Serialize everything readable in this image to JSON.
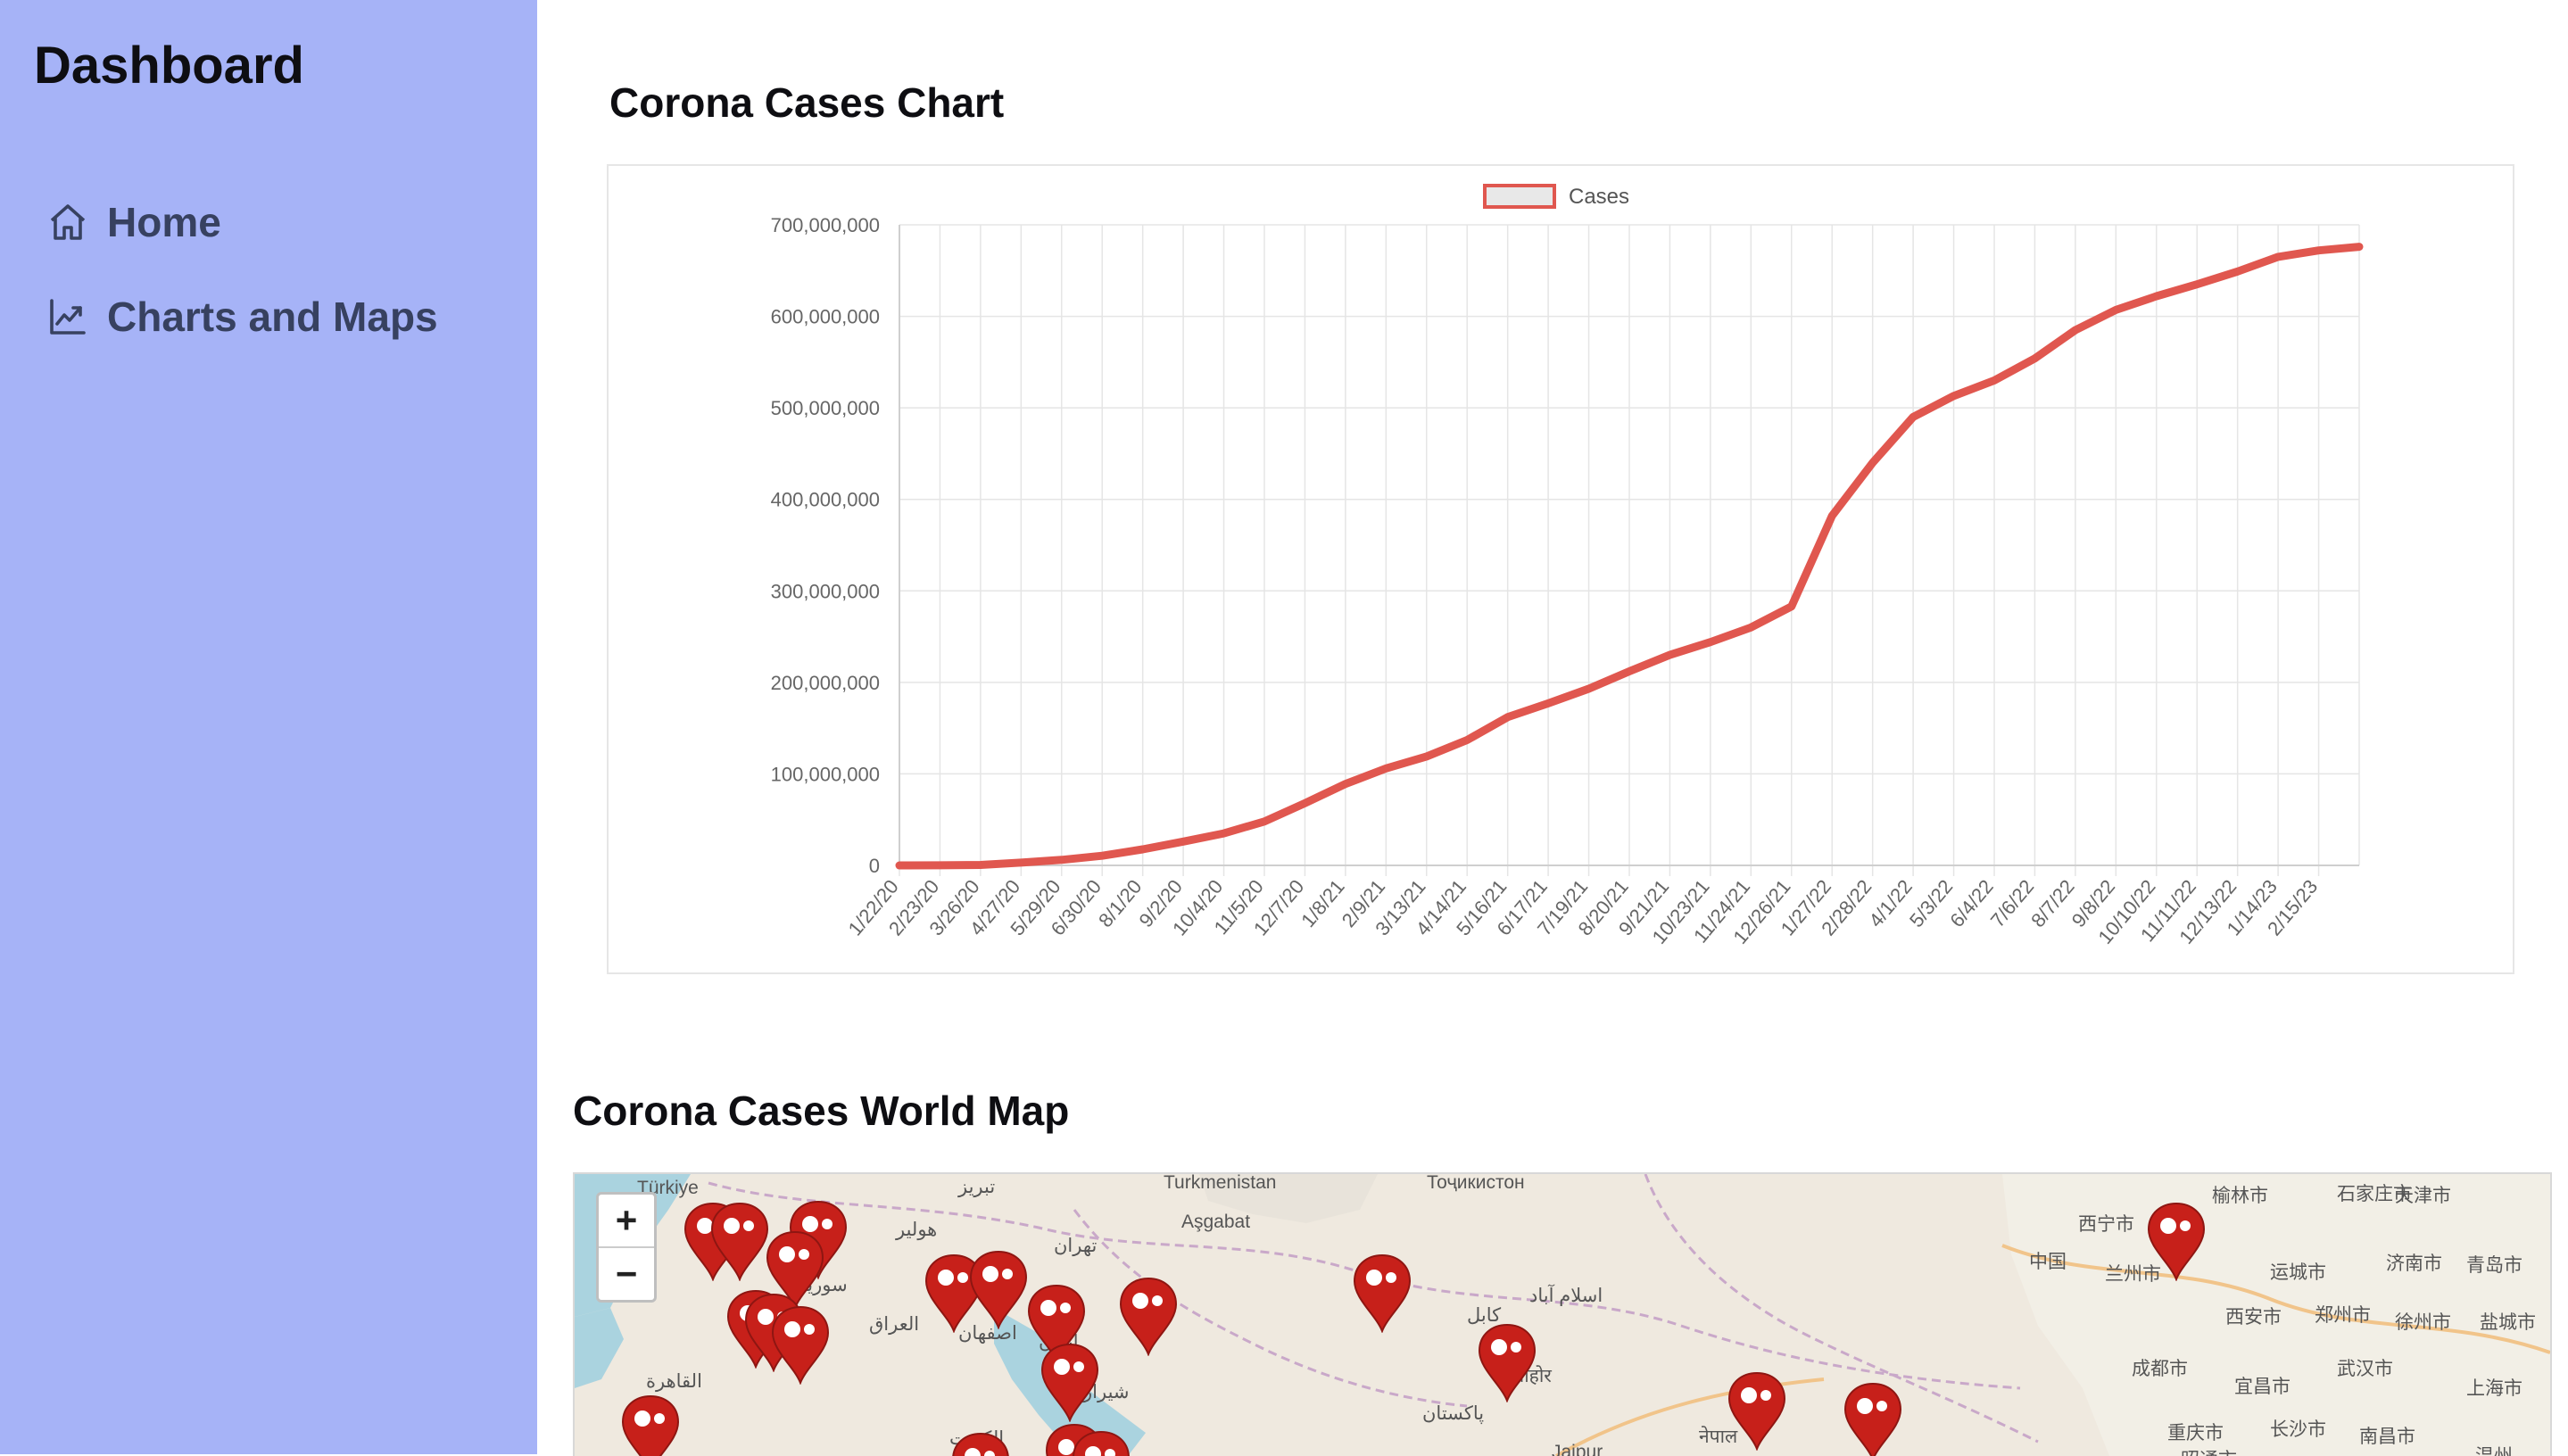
{
  "sidebar": {
    "brand": "Dashboard",
    "items": [
      {
        "label": "Home",
        "icon": "home-icon"
      },
      {
        "label": "Charts and Maps",
        "icon": "chart-line-icon"
      }
    ]
  },
  "main": {
    "chart_title": "Corona Cases Chart",
    "map_title": "Corona Cases World Map"
  },
  "colors": {
    "sidebar_bg": "#a6b3f7",
    "line": "#e0574f",
    "marker": "#c7201a"
  },
  "chart_data": {
    "type": "line",
    "title": "",
    "xlabel": "",
    "ylabel": "",
    "ylim": [
      0,
      700000000
    ],
    "y_ticks": [
      "700,000,000",
      "600,000,000",
      "500,000,000",
      "400,000,000",
      "300,000,000",
      "200,000,000",
      "100,000,000",
      "0"
    ],
    "x_tick_labels": [
      "1/22/20",
      "2/23/20",
      "3/26/20",
      "4/27/20",
      "5/29/20",
      "6/30/20",
      "8/1/20",
      "9/2/20",
      "10/4/20",
      "11/5/20",
      "12/7/20",
      "1/8/21",
      "2/9/21",
      "3/13/21",
      "4/14/21",
      "5/16/21",
      "6/17/21",
      "7/19/21",
      "8/20/21",
      "9/21/21",
      "10/23/21",
      "11/24/21",
      "12/26/21",
      "1/27/22",
      "2/28/22",
      "4/1/22",
      "5/3/22",
      "6/4/22",
      "7/6/22",
      "8/7/22",
      "9/8/22",
      "10/10/22",
      "11/11/22",
      "12/13/22",
      "1/14/23",
      "2/15/23"
    ],
    "legend": {
      "position": "top",
      "entries": [
        "Cases"
      ]
    },
    "grid": true,
    "series": [
      {
        "name": "Cases",
        "x": [
          "1/22/20",
          "2/23/20",
          "3/26/20",
          "4/27/20",
          "5/29/20",
          "6/30/20",
          "8/1/20",
          "9/2/20",
          "10/4/20",
          "11/5/20",
          "12/7/20",
          "1/8/21",
          "2/9/21",
          "3/13/21",
          "4/14/21",
          "5/16/21",
          "6/17/21",
          "7/19/21",
          "8/20/21",
          "9/21/21",
          "10/23/21",
          "11/24/21",
          "12/26/21",
          "1/27/22",
          "2/28/22",
          "4/1/22",
          "5/3/22",
          "6/4/22",
          "7/6/22",
          "8/7/22",
          "9/8/22",
          "10/10/22",
          "11/11/22",
          "12/13/22",
          "1/14/23",
          "2/15/23",
          "3/9/23"
        ],
        "values": [
          0,
          100000,
          500000,
          3000000,
          6000000,
          10500000,
          17500000,
          26000000,
          35000000,
          48000000,
          68000000,
          89000000,
          106000000,
          119000000,
          137000000,
          162000000,
          177000000,
          193000000,
          212000000,
          230000000,
          244000000,
          260000000,
          283000000,
          382000000,
          440000000,
          490000000,
          513000000,
          530000000,
          554000000,
          585000000,
          607000000,
          622000000,
          635000000,
          649000000,
          665000000,
          672000000,
          676000000
        ]
      }
    ]
  },
  "map": {
    "zoom_in": "+",
    "zoom_out": "−",
    "labels": [
      "Türkiye",
      "تبریز",
      "Turkmenistan",
      "Тоҷикистон",
      "Aşgabat",
      "西宁市",
      "榆林市",
      "石家庄市",
      "天津市",
      "هولیر",
      "سوریه",
      "تهران",
      "中国",
      "兰州市",
      "运城市",
      "济南市",
      "青岛市",
      "کابل",
      "اسلام آباد",
      "العراق",
      "اصفهان",
      "ایران",
      "西安市",
      "郑州市",
      "徐州市",
      "盐城市",
      "القاهرة",
      "成都市",
      "宜昌市",
      "武汉市",
      "上海市",
      "شیراز",
      "लाहोर",
      "پاکستان",
      "الكويت",
      "重庆市",
      "长沙市",
      "南昌市",
      "Jaipur",
      "नेपाल",
      "昭通市",
      "温州"
    ]
  }
}
